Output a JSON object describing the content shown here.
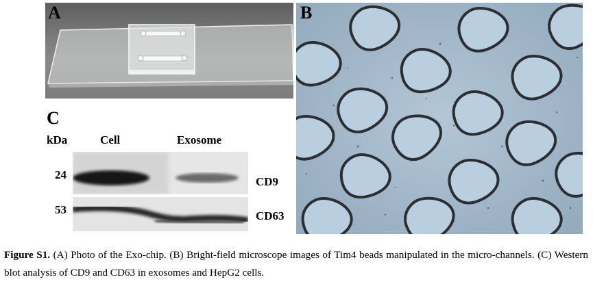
{
  "figure": {
    "panels": [
      {
        "label": "A",
        "content": "photo of Exo-chip glass slide"
      },
      {
        "label": "B",
        "content": "bright-field microscope image of beads in micro-channels"
      },
      {
        "label": "C",
        "content": "western blot"
      }
    ],
    "panel_a": {
      "label": "A"
    },
    "panel_b": {
      "label": "B"
    },
    "panel_c": {
      "label": "C",
      "unit_header": "kDa",
      "lane_headers": [
        "Cell",
        "Exosome"
      ],
      "markers": [
        "24",
        "53"
      ],
      "bands": [
        "CD9",
        "CD63"
      ]
    },
    "caption": {
      "lead": "Figure S1.",
      "text": " (A) Photo of the Exo-chip. (B) Bright-field microscope images of Tim4 beads manipulated in the micro-channels. (C) Western blot analysis of CD9 and CD63 in exosomes and HepG2 cells."
    }
  }
}
